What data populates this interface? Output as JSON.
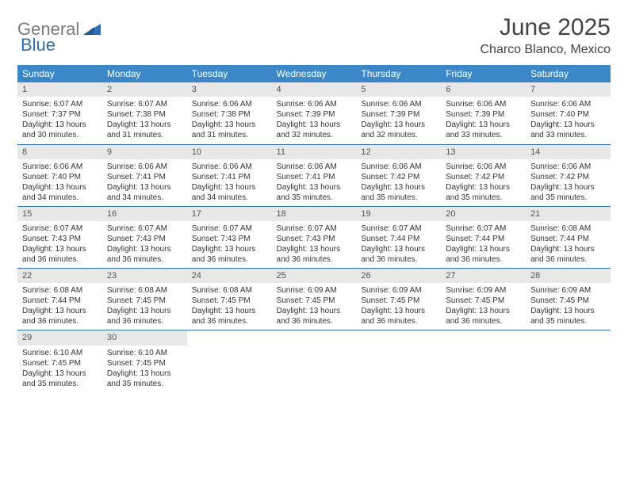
{
  "logo": {
    "text1": "General",
    "text2": "Blue"
  },
  "title": "June 2025",
  "location": "Charco Blanco, Mexico",
  "colors": {
    "header_bg": "#3b87c8",
    "header_text": "#ffffff",
    "rule": "#2f6fb0",
    "daynum_bg": "#e8e8e8",
    "logo_gray": "#7a7a7a",
    "logo_blue": "#2f6fb0"
  },
  "weekdays": [
    "Sunday",
    "Monday",
    "Tuesday",
    "Wednesday",
    "Thursday",
    "Friday",
    "Saturday"
  ],
  "days": [
    {
      "n": "1",
      "sr": "Sunrise: 6:07 AM",
      "ss": "Sunset: 7:37 PM",
      "d1": "Daylight: 13 hours",
      "d2": "and 30 minutes."
    },
    {
      "n": "2",
      "sr": "Sunrise: 6:07 AM",
      "ss": "Sunset: 7:38 PM",
      "d1": "Daylight: 13 hours",
      "d2": "and 31 minutes."
    },
    {
      "n": "3",
      "sr": "Sunrise: 6:06 AM",
      "ss": "Sunset: 7:38 PM",
      "d1": "Daylight: 13 hours",
      "d2": "and 31 minutes."
    },
    {
      "n": "4",
      "sr": "Sunrise: 6:06 AM",
      "ss": "Sunset: 7:39 PM",
      "d1": "Daylight: 13 hours",
      "d2": "and 32 minutes."
    },
    {
      "n": "5",
      "sr": "Sunrise: 6:06 AM",
      "ss": "Sunset: 7:39 PM",
      "d1": "Daylight: 13 hours",
      "d2": "and 32 minutes."
    },
    {
      "n": "6",
      "sr": "Sunrise: 6:06 AM",
      "ss": "Sunset: 7:39 PM",
      "d1": "Daylight: 13 hours",
      "d2": "and 33 minutes."
    },
    {
      "n": "7",
      "sr": "Sunrise: 6:06 AM",
      "ss": "Sunset: 7:40 PM",
      "d1": "Daylight: 13 hours",
      "d2": "and 33 minutes."
    },
    {
      "n": "8",
      "sr": "Sunrise: 6:06 AM",
      "ss": "Sunset: 7:40 PM",
      "d1": "Daylight: 13 hours",
      "d2": "and 34 minutes."
    },
    {
      "n": "9",
      "sr": "Sunrise: 6:06 AM",
      "ss": "Sunset: 7:41 PM",
      "d1": "Daylight: 13 hours",
      "d2": "and 34 minutes."
    },
    {
      "n": "10",
      "sr": "Sunrise: 6:06 AM",
      "ss": "Sunset: 7:41 PM",
      "d1": "Daylight: 13 hours",
      "d2": "and 34 minutes."
    },
    {
      "n": "11",
      "sr": "Sunrise: 6:06 AM",
      "ss": "Sunset: 7:41 PM",
      "d1": "Daylight: 13 hours",
      "d2": "and 35 minutes."
    },
    {
      "n": "12",
      "sr": "Sunrise: 6:06 AM",
      "ss": "Sunset: 7:42 PM",
      "d1": "Daylight: 13 hours",
      "d2": "and 35 minutes."
    },
    {
      "n": "13",
      "sr": "Sunrise: 6:06 AM",
      "ss": "Sunset: 7:42 PM",
      "d1": "Daylight: 13 hours",
      "d2": "and 35 minutes."
    },
    {
      "n": "14",
      "sr": "Sunrise: 6:06 AM",
      "ss": "Sunset: 7:42 PM",
      "d1": "Daylight: 13 hours",
      "d2": "and 35 minutes."
    },
    {
      "n": "15",
      "sr": "Sunrise: 6:07 AM",
      "ss": "Sunset: 7:43 PM",
      "d1": "Daylight: 13 hours",
      "d2": "and 36 minutes."
    },
    {
      "n": "16",
      "sr": "Sunrise: 6:07 AM",
      "ss": "Sunset: 7:43 PM",
      "d1": "Daylight: 13 hours",
      "d2": "and 36 minutes."
    },
    {
      "n": "17",
      "sr": "Sunrise: 6:07 AM",
      "ss": "Sunset: 7:43 PM",
      "d1": "Daylight: 13 hours",
      "d2": "and 36 minutes."
    },
    {
      "n": "18",
      "sr": "Sunrise: 6:07 AM",
      "ss": "Sunset: 7:43 PM",
      "d1": "Daylight: 13 hours",
      "d2": "and 36 minutes."
    },
    {
      "n": "19",
      "sr": "Sunrise: 6:07 AM",
      "ss": "Sunset: 7:44 PM",
      "d1": "Daylight: 13 hours",
      "d2": "and 36 minutes."
    },
    {
      "n": "20",
      "sr": "Sunrise: 6:07 AM",
      "ss": "Sunset: 7:44 PM",
      "d1": "Daylight: 13 hours",
      "d2": "and 36 minutes."
    },
    {
      "n": "21",
      "sr": "Sunrise: 6:08 AM",
      "ss": "Sunset: 7:44 PM",
      "d1": "Daylight: 13 hours",
      "d2": "and 36 minutes."
    },
    {
      "n": "22",
      "sr": "Sunrise: 6:08 AM",
      "ss": "Sunset: 7:44 PM",
      "d1": "Daylight: 13 hours",
      "d2": "and 36 minutes."
    },
    {
      "n": "23",
      "sr": "Sunrise: 6:08 AM",
      "ss": "Sunset: 7:45 PM",
      "d1": "Daylight: 13 hours",
      "d2": "and 36 minutes."
    },
    {
      "n": "24",
      "sr": "Sunrise: 6:08 AM",
      "ss": "Sunset: 7:45 PM",
      "d1": "Daylight: 13 hours",
      "d2": "and 36 minutes."
    },
    {
      "n": "25",
      "sr": "Sunrise: 6:09 AM",
      "ss": "Sunset: 7:45 PM",
      "d1": "Daylight: 13 hours",
      "d2": "and 36 minutes."
    },
    {
      "n": "26",
      "sr": "Sunrise: 6:09 AM",
      "ss": "Sunset: 7:45 PM",
      "d1": "Daylight: 13 hours",
      "d2": "and 36 minutes."
    },
    {
      "n": "27",
      "sr": "Sunrise: 6:09 AM",
      "ss": "Sunset: 7:45 PM",
      "d1": "Daylight: 13 hours",
      "d2": "and 36 minutes."
    },
    {
      "n": "28",
      "sr": "Sunrise: 6:09 AM",
      "ss": "Sunset: 7:45 PM",
      "d1": "Daylight: 13 hours",
      "d2": "and 35 minutes."
    },
    {
      "n": "29",
      "sr": "Sunrise: 6:10 AM",
      "ss": "Sunset: 7:45 PM",
      "d1": "Daylight: 13 hours",
      "d2": "and 35 minutes."
    },
    {
      "n": "30",
      "sr": "Sunrise: 6:10 AM",
      "ss": "Sunset: 7:45 PM",
      "d1": "Daylight: 13 hours",
      "d2": "and 35 minutes."
    }
  ]
}
